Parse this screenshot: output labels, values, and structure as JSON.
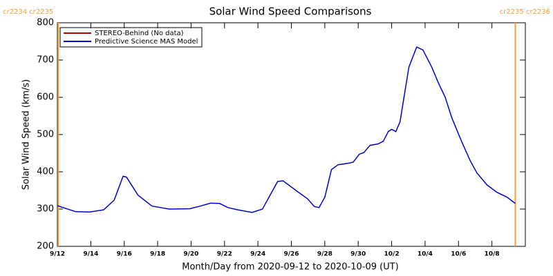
{
  "chart_data": {
    "type": "line",
    "title": "Solar Wind Speed Comparisons",
    "xlabel": "Month/Day from 2020-09-12 to 2020-10-09 (UT)",
    "ylabel": "Solar Wind Speed (km/s)",
    "xlim": [
      0,
      28
    ],
    "ylim": [
      200,
      800
    ],
    "xticks": [
      {
        "value": 0,
        "label": "9/12"
      },
      {
        "value": 2,
        "label": "9/14"
      },
      {
        "value": 4,
        "label": "9/16"
      },
      {
        "value": 6,
        "label": "9/18"
      },
      {
        "value": 8,
        "label": "9/20"
      },
      {
        "value": 10,
        "label": "9/22"
      },
      {
        "value": 12,
        "label": "9/24"
      },
      {
        "value": 14,
        "label": "9/26"
      },
      {
        "value": 16,
        "label": "9/28"
      },
      {
        "value": 18,
        "label": "9/30"
      },
      {
        "value": 20,
        "label": "10/2"
      },
      {
        "value": 22,
        "label": "10/4"
      },
      {
        "value": 24,
        "label": "10/6"
      },
      {
        "value": 26,
        "label": "10/8"
      }
    ],
    "yticks": [
      200,
      300,
      400,
      500,
      600,
      700,
      800
    ],
    "legend": "upper left",
    "annotation_color": "#f0a030",
    "annotations": [
      {
        "text": "cr2234 cr2235",
        "x": 0.05
      },
      {
        "text": "cr2235 cr2236",
        "x": 27.4
      }
    ],
    "series": [
      {
        "name": "STEREO-Behind (No data)",
        "color": "#b00000",
        "x": [],
        "values": []
      },
      {
        "name": "Predictive Science MAS Model",
        "color": "#0000cc",
        "x": [
          0,
          1.1,
          1.94,
          2.77,
          3.4,
          3.93,
          4.13,
          4.83,
          5.66,
          6.7,
          7.93,
          8.55,
          9.17,
          9.71,
          10.2,
          10.8,
          11.65,
          12.27,
          12.77,
          13.18,
          13.5,
          14.34,
          14.96,
          15.37,
          15.66,
          16,
          16.4,
          16.8,
          17.4,
          17.7,
          18.06,
          18.35,
          18.7,
          19.2,
          19.5,
          19.8,
          20,
          20.25,
          20.5,
          20.74,
          21.03,
          21.5,
          21.87,
          22.4,
          22.8,
          23.2,
          23.6,
          24.2,
          24.7,
          25.1,
          25.7,
          26.3,
          26.9,
          27.4
        ],
        "values": [
          309,
          293,
          292,
          298,
          324,
          388,
          386,
          337,
          308,
          300,
          301,
          308,
          316,
          315,
          304,
          298,
          291,
          300,
          341,
          374,
          376,
          348,
          328,
          307,
          304,
          332,
          406,
          419,
          423,
          426,
          447,
          452,
          471,
          475,
          482,
          508,
          514,
          508,
          534,
          601,
          681,
          735,
          727,
          681,
          638,
          601,
          545,
          480,
          430,
          397,
          365,
          345,
          332,
          315
        ]
      }
    ]
  }
}
